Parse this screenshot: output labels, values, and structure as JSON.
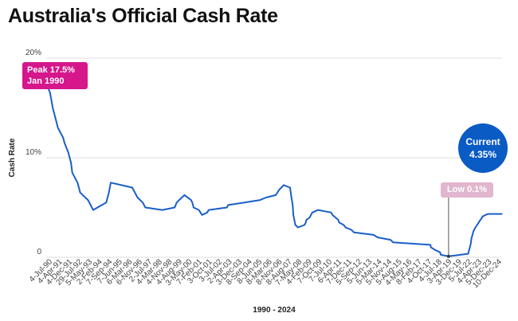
{
  "title": "Australia's Official Cash Rate",
  "chart_data": {
    "type": "line",
    "title": "Australia's Official Cash Rate",
    "xlabel": "1990 - 2024",
    "ylabel": "Cash Rate",
    "ylim": [
      0,
      20
    ],
    "xlim": [
      1990.0,
      2024.95
    ],
    "yticks": [
      "0",
      "10%",
      "20%"
    ],
    "ytick_values": [
      0,
      10,
      20
    ],
    "grid": true,
    "color": "#1a5fc8",
    "xtick_labels": [
      "4-Jul-90",
      "4-Apr-91",
      "4-Dec-91",
      "29-Jul-92",
      "5-May-93",
      "2-Feb-94",
      "7-Sep-94",
      "7-Jun-95",
      "6-Mar-96",
      "6-Nov-96",
      "2-Jul-97",
      "4-Mar-98",
      "4-Nov-98",
      "4-Aug-99",
      "3-May-00",
      "7-Feb-01",
      "3-Oct-01",
      "3-Jul-02",
      "2-Apr-03",
      "3-Dec-03",
      "8-Sep-04",
      "8-Jun-05",
      "8-Mar-06",
      "8-Nov-06",
      "8-Aug-07",
      "7-May-08",
      "4-Feb-09",
      "7-Oct-09",
      "7-Jul-10",
      "6-Apr-11",
      "7-Dec-11",
      "5-Sep-12",
      "5-Jun-13",
      "5-Mar-14",
      "5-Nov-14",
      "5-Aug-15",
      "4-May-16",
      "8-Feb-17",
      "4-Oct-17",
      "4-Jul-18",
      "3-Apr-19",
      "3-Dec-19",
      "5-Jul-22",
      "4-Apr-23",
      "5-Dec-23",
      "10-Dec-24"
    ],
    "x": [
      1990.0,
      1990.3,
      1990.5,
      1990.7,
      1990.9,
      1991.3,
      1991.4,
      1991.7,
      1991.9,
      1992.0,
      1992.4,
      1992.6,
      1993.2,
      1993.6,
      1994.6,
      1994.8,
      1994.95,
      1996.6,
      1996.8,
      1997.0,
      1997.4,
      1997.6,
      1998.9,
      1999.85,
      2000.0,
      2000.2,
      2000.6,
      2001.1,
      2001.2,
      2001.3,
      2001.7,
      2001.95,
      2002.35,
      2002.45,
      2003.85,
      2003.95,
      2005.2,
      2006.4,
      2006.85,
      2007.6,
      2007.85,
      2008.2,
      2008.7,
      2008.8,
      2008.9,
      2008.95,
      2009.1,
      2009.3,
      2009.8,
      2009.9,
      2009.95,
      2010.2,
      2010.3,
      2010.4,
      2010.85,
      2011.85,
      2011.95,
      2012.4,
      2012.45,
      2012.8,
      2012.95,
      2013.4,
      2013.6,
      2015.1,
      2015.4,
      2016.4,
      2016.6,
      2019.45,
      2019.5,
      2019.8,
      2020.2,
      2020.25,
      2020.85,
      2022.35,
      2022.45,
      2022.55,
      2022.6,
      2022.7,
      2022.75,
      2022.85,
      2022.95,
      2023.1,
      2023.2,
      2023.35,
      2023.45,
      2023.85,
      2024.95
    ],
    "values": [
      17.5,
      16.5,
      15,
      14,
      13,
      12,
      11.5,
      10.5,
      9.5,
      8.5,
      7.5,
      6.5,
      5.75,
      4.75,
      5.5,
      6.5,
      7.5,
      7.0,
      6.5,
      6.0,
      5.5,
      5.0,
      4.75,
      5.0,
      5.5,
      5.75,
      6.25,
      5.75,
      5.5,
      5.0,
      4.75,
      4.25,
      4.5,
      4.75,
      5.0,
      5.25,
      5.5,
      5.75,
      6.0,
      6.25,
      6.75,
      7.25,
      7.0,
      6.0,
      5.25,
      4.25,
      3.25,
      3.0,
      3.25,
      3.5,
      3.75,
      4.0,
      4.25,
      4.5,
      4.75,
      4.5,
      4.25,
      3.75,
      3.5,
      3.25,
      3.0,
      2.75,
      2.5,
      2.25,
      2.0,
      1.75,
      1.5,
      1.25,
      1.0,
      0.75,
      0.5,
      0.25,
      0.1,
      0.35,
      0.85,
      1.35,
      1.85,
      2.35,
      2.6,
      2.85,
      3.1,
      3.35,
      3.6,
      3.85,
      4.1,
      4.35,
      4.35
    ],
    "annotations": {
      "peak": {
        "line1": "Peak 17.5%",
        "line2": "Jan 1990",
        "value": 17.5,
        "color": "#d6168b"
      },
      "current": {
        "line1": "Current",
        "line2": "4.35%",
        "value": 4.35,
        "color": "#0a5bc4"
      },
      "low": {
        "label": "Low 0.1%",
        "value": 0.1,
        "color": "#e2b6cf"
      }
    }
  }
}
